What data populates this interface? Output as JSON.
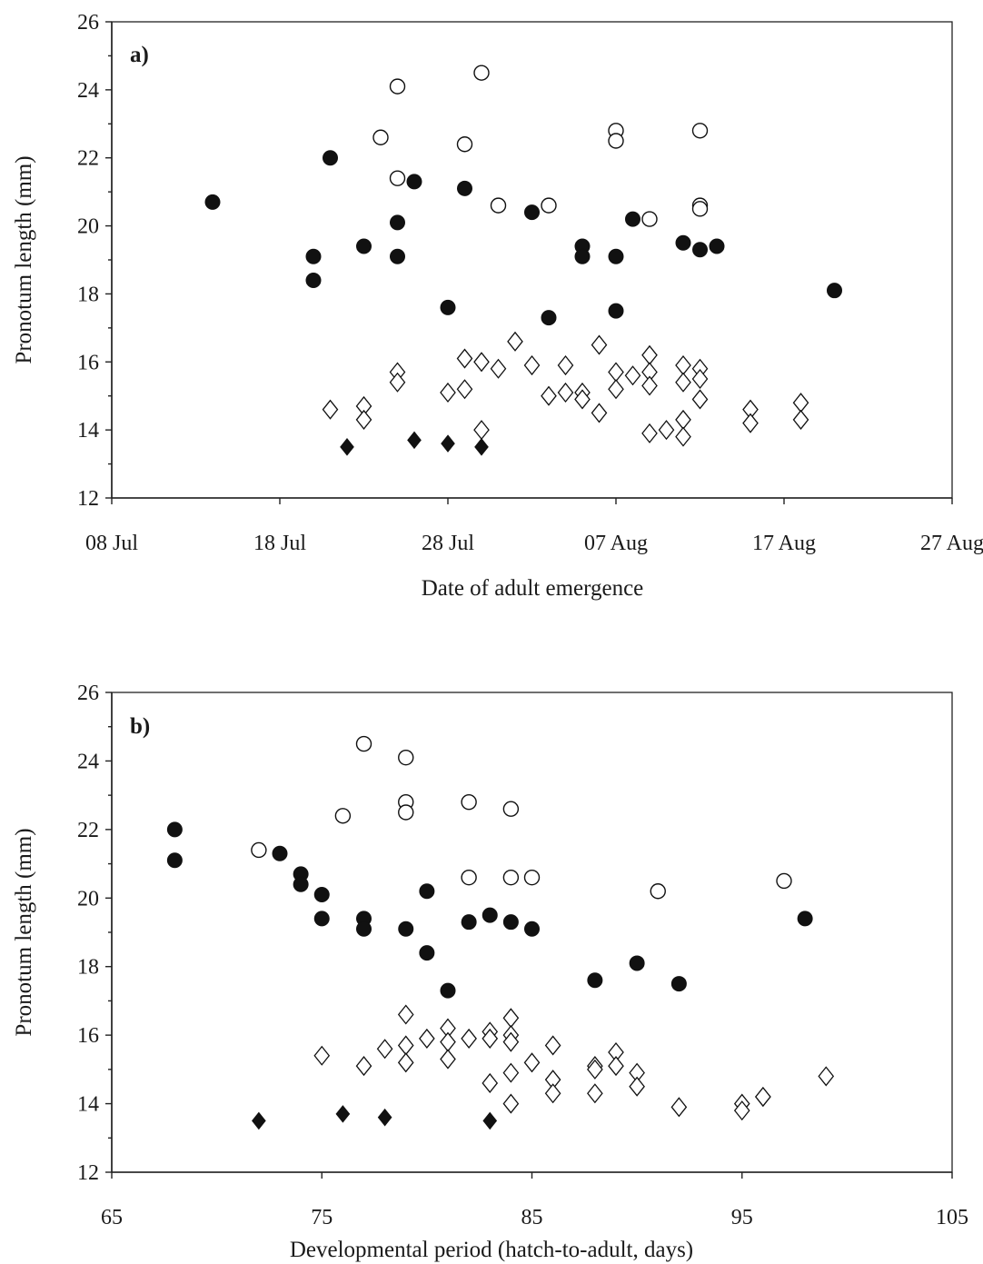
{
  "chart_data": [
    {
      "type": "scatter",
      "panel_label": "a)",
      "xlabel": "Date of adult emergence",
      "ylabel": "Pronotum length (mm)",
      "x_axis": "date",
      "xlim": [
        "2016-07-08",
        "2016-08-27"
      ],
      "xticks": [
        {
          "value": "2016-07-08",
          "label": "08 Jul"
        },
        {
          "value": "2016-07-18",
          "label": "18 Jul"
        },
        {
          "value": "2016-07-28",
          "label": "28 Jul"
        },
        {
          "value": "2016-08-07",
          "label": "07 Aug"
        },
        {
          "value": "2016-08-17",
          "label": "17 Aug"
        },
        {
          "value": "2016-08-27",
          "label": "27 Aug"
        }
      ],
      "ylim": [
        12,
        26
      ],
      "yticks": [
        12,
        14,
        16,
        18,
        20,
        22,
        24,
        26
      ],
      "grid": false,
      "series": [
        {
          "marker": "filled-circle",
          "points": [
            [
              "2016-07-14",
              20.7
            ],
            [
              "2016-07-20",
              19.1
            ],
            [
              "2016-07-20",
              18.4
            ],
            [
              "2016-07-21",
              22.0
            ],
            [
              "2016-07-23",
              19.4
            ],
            [
              "2016-07-25",
              20.1
            ],
            [
              "2016-07-25",
              19.1
            ],
            [
              "2016-07-26",
              21.3
            ],
            [
              "2016-07-28",
              17.6
            ],
            [
              "2016-07-29",
              21.1
            ],
            [
              "2016-08-02",
              20.4
            ],
            [
              "2016-08-03",
              17.3
            ],
            [
              "2016-08-05",
              19.4
            ],
            [
              "2016-08-05",
              19.1
            ],
            [
              "2016-08-07",
              19.1
            ],
            [
              "2016-08-07",
              17.5
            ],
            [
              "2016-08-08",
              20.2
            ],
            [
              "2016-08-11",
              19.5
            ],
            [
              "2016-08-12",
              19.3
            ],
            [
              "2016-08-13",
              19.4
            ],
            [
              "2016-08-20",
              18.1
            ]
          ]
        },
        {
          "marker": "open-circle",
          "points": [
            [
              "2016-07-24",
              22.6
            ],
            [
              "2016-07-25",
              24.1
            ],
            [
              "2016-07-25",
              21.4
            ],
            [
              "2016-07-29",
              22.4
            ],
            [
              "2016-07-30",
              24.5
            ],
            [
              "2016-07-31",
              20.6
            ],
            [
              "2016-08-03",
              20.6
            ],
            [
              "2016-08-07",
              22.8
            ],
            [
              "2016-08-07",
              22.5
            ],
            [
              "2016-08-09",
              20.2
            ],
            [
              "2016-08-12",
              22.8
            ],
            [
              "2016-08-12",
              20.6
            ],
            [
              "2016-08-12",
              20.5
            ]
          ]
        },
        {
          "marker": "filled-diamond",
          "points": [
            [
              "2016-07-22",
              13.5
            ],
            [
              "2016-07-26",
              13.7
            ],
            [
              "2016-07-28",
              13.6
            ],
            [
              "2016-07-30",
              13.5
            ]
          ]
        },
        {
          "marker": "open-diamond",
          "points": [
            [
              "2016-07-21",
              14.6
            ],
            [
              "2016-07-23",
              14.7
            ],
            [
              "2016-07-23",
              14.3
            ],
            [
              "2016-07-25",
              15.7
            ],
            [
              "2016-07-25",
              15.4
            ],
            [
              "2016-07-28",
              15.1
            ],
            [
              "2016-07-29",
              16.1
            ],
            [
              "2016-07-29",
              15.2
            ],
            [
              "2016-07-30",
              16.0
            ],
            [
              "2016-07-30",
              14.0
            ],
            [
              "2016-07-31",
              15.8
            ],
            [
              "2016-08-01",
              16.6
            ],
            [
              "2016-08-02",
              15.9
            ],
            [
              "2016-08-03",
              15.0
            ],
            [
              "2016-08-04",
              15.9
            ],
            [
              "2016-08-04",
              15.1
            ],
            [
              "2016-08-05",
              15.1
            ],
            [
              "2016-08-05",
              14.9
            ],
            [
              "2016-08-06",
              16.5
            ],
            [
              "2016-08-06",
              14.5
            ],
            [
              "2016-08-07",
              15.7
            ],
            [
              "2016-08-07",
              15.2
            ],
            [
              "2016-08-08",
              15.6
            ],
            [
              "2016-08-09",
              16.2
            ],
            [
              "2016-08-09",
              15.7
            ],
            [
              "2016-08-09",
              15.3
            ],
            [
              "2016-08-09",
              13.9
            ],
            [
              "2016-08-10",
              14.0
            ],
            [
              "2016-08-11",
              15.9
            ],
            [
              "2016-08-11",
              15.4
            ],
            [
              "2016-08-11",
              14.3
            ],
            [
              "2016-08-11",
              13.8
            ],
            [
              "2016-08-12",
              15.8
            ],
            [
              "2016-08-12",
              15.5
            ],
            [
              "2016-08-12",
              14.9
            ],
            [
              "2016-08-15",
              14.6
            ],
            [
              "2016-08-15",
              14.2
            ],
            [
              "2016-08-18",
              14.8
            ],
            [
              "2016-08-18",
              14.3
            ]
          ]
        }
      ]
    },
    {
      "type": "scatter",
      "panel_label": "b)",
      "xlabel": "Developmental period (hatch-to-adult, days)",
      "ylabel": "Pronotum length (mm)",
      "x_axis": "linear",
      "xlim": [
        65,
        105
      ],
      "xticks": [
        65,
        75,
        85,
        95,
        105
      ],
      "ylim": [
        12,
        26
      ],
      "yticks": [
        12,
        14,
        16,
        18,
        20,
        22,
        24,
        26
      ],
      "grid": false,
      "series": [
        {
          "marker": "filled-circle",
          "points": [
            [
              68,
              22.0
            ],
            [
              68,
              21.1
            ],
            [
              73,
              21.3
            ],
            [
              74,
              20.7
            ],
            [
              74,
              20.4
            ],
            [
              75,
              20.1
            ],
            [
              75,
              19.4
            ],
            [
              77,
              19.4
            ],
            [
              77,
              19.1
            ],
            [
              79,
              19.1
            ],
            [
              80,
              20.2
            ],
            [
              80,
              18.4
            ],
            [
              81,
              17.3
            ],
            [
              82,
              19.3
            ],
            [
              83,
              19.5
            ],
            [
              84,
              19.3
            ],
            [
              85,
              19.1
            ],
            [
              88,
              17.6
            ],
            [
              90,
              18.1
            ],
            [
              92,
              17.5
            ],
            [
              98,
              19.4
            ]
          ]
        },
        {
          "marker": "open-circle",
          "points": [
            [
              72,
              21.4
            ],
            [
              76,
              22.4
            ],
            [
              77,
              24.5
            ],
            [
              79,
              24.1
            ],
            [
              79,
              22.8
            ],
            [
              79,
              22.5
            ],
            [
              82,
              22.8
            ],
            [
              82,
              20.6
            ],
            [
              84,
              22.6
            ],
            [
              84,
              20.6
            ],
            [
              85,
              20.6
            ],
            [
              91,
              20.2
            ],
            [
              97,
              20.5
            ]
          ]
        },
        {
          "marker": "filled-diamond",
          "points": [
            [
              72,
              13.5
            ],
            [
              76,
              13.7
            ],
            [
              78,
              13.6
            ],
            [
              83,
              13.5
            ]
          ]
        },
        {
          "marker": "open-diamond",
          "points": [
            [
              75,
              15.4
            ],
            [
              77,
              15.1
            ],
            [
              78,
              15.6
            ],
            [
              79,
              16.6
            ],
            [
              79,
              15.7
            ],
            [
              79,
              15.2
            ],
            [
              80,
              15.9
            ],
            [
              81,
              16.2
            ],
            [
              81,
              15.8
            ],
            [
              81,
              15.3
            ],
            [
              82,
              15.9
            ],
            [
              83,
              16.1
            ],
            [
              83,
              15.9
            ],
            [
              83,
              14.6
            ],
            [
              84,
              16.5
            ],
            [
              84,
              16.0
            ],
            [
              84,
              15.8
            ],
            [
              84,
              14.9
            ],
            [
              84,
              14.0
            ],
            [
              85,
              15.2
            ],
            [
              86,
              15.7
            ],
            [
              86,
              14.7
            ],
            [
              86,
              14.3
            ],
            [
              88,
              15.1
            ],
            [
              88,
              15.0
            ],
            [
              88,
              14.3
            ],
            [
              89,
              15.5
            ],
            [
              89,
              15.1
            ],
            [
              90,
              14.9
            ],
            [
              90,
              14.5
            ],
            [
              92,
              13.9
            ],
            [
              95,
              14.0
            ],
            [
              95,
              13.8
            ],
            [
              96,
              14.2
            ],
            [
              96,
              14.2
            ],
            [
              99,
              14.8
            ]
          ]
        }
      ]
    }
  ]
}
